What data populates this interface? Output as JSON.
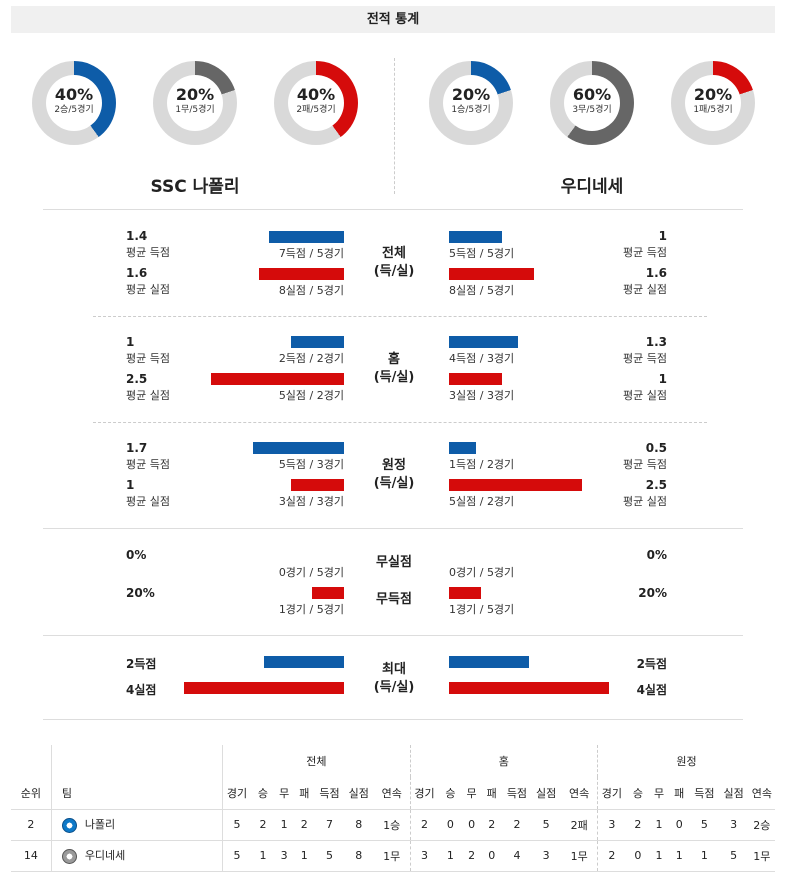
{
  "header": "전적 통계",
  "home_team": "SSC 나폴리",
  "away_team": "우디네세",
  "donuts": [
    {
      "pct": "40%",
      "sub": "2승/5경기",
      "value": 0.4,
      "color": "#0e5ca8"
    },
    {
      "pct": "20%",
      "sub": "1무/5경기",
      "value": 0.2,
      "color": "#666666"
    },
    {
      "pct": "40%",
      "sub": "2패/5경기",
      "value": 0.4,
      "color": "#d50b0b"
    },
    {
      "pct": "20%",
      "sub": "1승/5경기",
      "value": 0.2,
      "color": "#0e5ca8"
    },
    {
      "pct": "60%",
      "sub": "3무/5경기",
      "value": 0.6,
      "color": "#666666"
    },
    {
      "pct": "20%",
      "sub": "1패/5경기",
      "value": 0.2,
      "color": "#d50b0b"
    }
  ],
  "sections": {
    "total": {
      "label1": "전체",
      "label2": "(득/실)",
      "home": {
        "scored_val": "1.4",
        "scored_lbl": "평균 득점",
        "scored_bar": "7득점 / 5경기",
        "conceded_val": "1.6",
        "conceded_lbl": "평균 실점",
        "conceded_bar": "8실점 / 5경기"
      },
      "away": {
        "scored_val": "1",
        "scored_lbl": "평균 득점",
        "scored_bar": "5득점 / 5경기",
        "conceded_val": "1.6",
        "conceded_lbl": "평균 실점",
        "conceded_bar": "8실점 / 5경기"
      }
    },
    "home": {
      "label1": "홈",
      "label2": "(득/실)",
      "home": {
        "scored_val": "1",
        "scored_lbl": "평균 득점",
        "scored_bar": "2득점 / 2경기",
        "conceded_val": "2.5",
        "conceded_lbl": "평균 실점",
        "conceded_bar": "5실점 / 2경기"
      },
      "away": {
        "scored_val": "1.3",
        "scored_lbl": "평균 득점",
        "scored_bar": "4득점 / 3경기",
        "conceded_val": "1",
        "conceded_lbl": "평균 실점",
        "conceded_bar": "3실점 / 3경기"
      }
    },
    "away": {
      "label1": "원정",
      "label2": "(득/실)",
      "home": {
        "scored_val": "1.7",
        "scored_lbl": "평균 득점",
        "scored_bar": "5득점 / 3경기",
        "conceded_val": "1",
        "conceded_lbl": "평균 실점",
        "conceded_bar": "3실점 / 3경기"
      },
      "away": {
        "scored_val": "0.5",
        "scored_lbl": "평균 득점",
        "scored_bar": "1득점 / 2경기",
        "conceded_val": "2.5",
        "conceded_lbl": "평균 실점",
        "conceded_bar": "5실점 / 2경기"
      }
    },
    "clean": {
      "label_cs": "무실점",
      "label_fs": "무득점",
      "home": {
        "cs_val": "0%",
        "cs_bar": "0경기 / 5경기",
        "fs_val": "20%",
        "fs_bar": "1경기 / 5경기"
      },
      "away": {
        "cs_val": "0%",
        "cs_bar": "0경기 / 5경기",
        "fs_val": "20%",
        "fs_bar": "1경기 / 5경기"
      }
    },
    "max": {
      "label1": "최대",
      "label2": "(득/실)",
      "home": {
        "scored": "2득점",
        "conceded": "4실점"
      },
      "away": {
        "scored": "2득점",
        "conceded": "4실점"
      }
    }
  },
  "table": {
    "groups": [
      "전체",
      "홈",
      "원정"
    ],
    "col_rank": "순위",
    "col_team": "팀",
    "sub_headers": [
      "경기",
      "승",
      "무",
      "패",
      "득점",
      "실점",
      "연속"
    ],
    "rows": [
      {
        "rank": "2",
        "team": "나폴리",
        "logo": "napoli-logo",
        "total": [
          "5",
          "2",
          "1",
          "2",
          "7",
          "8",
          "1승"
        ],
        "home": [
          "2",
          "0",
          "0",
          "2",
          "2",
          "5",
          "2패"
        ],
        "away": [
          "3",
          "2",
          "1",
          "0",
          "5",
          "3",
          "2승"
        ]
      },
      {
        "rank": "14",
        "team": "우디네세",
        "logo": "udinese-logo",
        "total": [
          "5",
          "1",
          "3",
          "1",
          "5",
          "8",
          "1무"
        ],
        "home": [
          "3",
          "1",
          "2",
          "0",
          "4",
          "3",
          "1무"
        ],
        "away": [
          "2",
          "0",
          "1",
          "1",
          "1",
          "5",
          "1무"
        ]
      }
    ]
  }
}
